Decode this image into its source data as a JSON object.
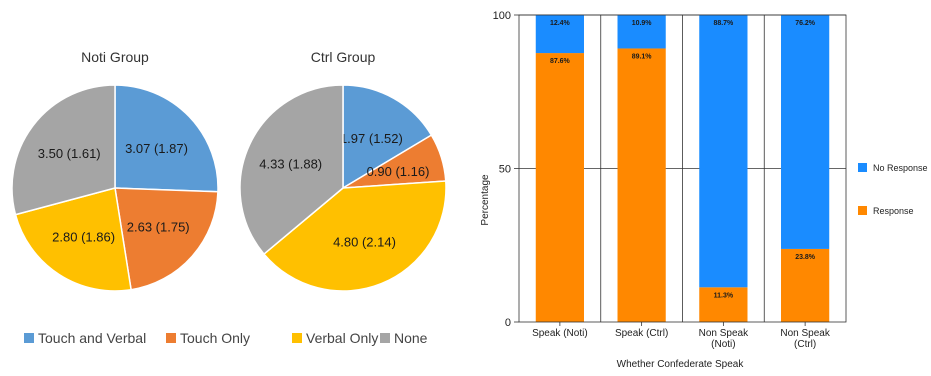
{
  "chart_data": [
    {
      "type": "pie",
      "title": "Noti Group",
      "categories": [
        "Touch and Verbal",
        "Touch Only",
        "Verbal Only",
        "None"
      ],
      "values": [
        3.07,
        2.63,
        2.8,
        3.5
      ],
      "labels": [
        "3.07 (1.87)",
        "2.63 (1.75)",
        "2.80 (1.86)",
        "3.50 (1.61)"
      ],
      "colors": [
        "#5b9bd5",
        "#ed7d31",
        "#ffc000",
        "#a5a5a5"
      ]
    },
    {
      "type": "pie",
      "title": "Ctrl Group",
      "categories": [
        "Touch and Verbal",
        "Touch Only",
        "Verbal Only",
        "None"
      ],
      "values": [
        1.97,
        0.9,
        4.8,
        4.33
      ],
      "labels": [
        "1.97 (1.52)",
        "0.90 (1.16)",
        "4.80 (2.14)",
        "4.33 (1.88)"
      ],
      "colors": [
        "#5b9bd5",
        "#ed7d31",
        "#ffc000",
        "#a5a5a5"
      ]
    },
    {
      "type": "bar",
      "stacked": true,
      "categories": [
        "Speak (Noti)",
        "Speak (Ctrl)",
        "Non Speak\n(Noti)",
        "Non Speak\n(Ctrl)"
      ],
      "series": [
        {
          "name": "Response",
          "color": "#ff8800",
          "values": [
            87.6,
            89.1,
            11.3,
            23.8
          ],
          "labels": [
            "87.6%",
            "89.1%",
            "11.3%",
            "23.8%"
          ]
        },
        {
          "name": "No Response",
          "color": "#1a8cff",
          "values": [
            12.4,
            10.9,
            88.7,
            76.2
          ],
          "labels": [
            "12.4%",
            "10.9%",
            "88.7%",
            "76.2%"
          ]
        }
      ],
      "xlabel": "Whether Confederate Speak",
      "ylabel": "Percentage",
      "ylim": [
        0,
        100
      ],
      "yticks": [
        0,
        50,
        100
      ],
      "grid": true,
      "legend_position": "right"
    }
  ]
}
